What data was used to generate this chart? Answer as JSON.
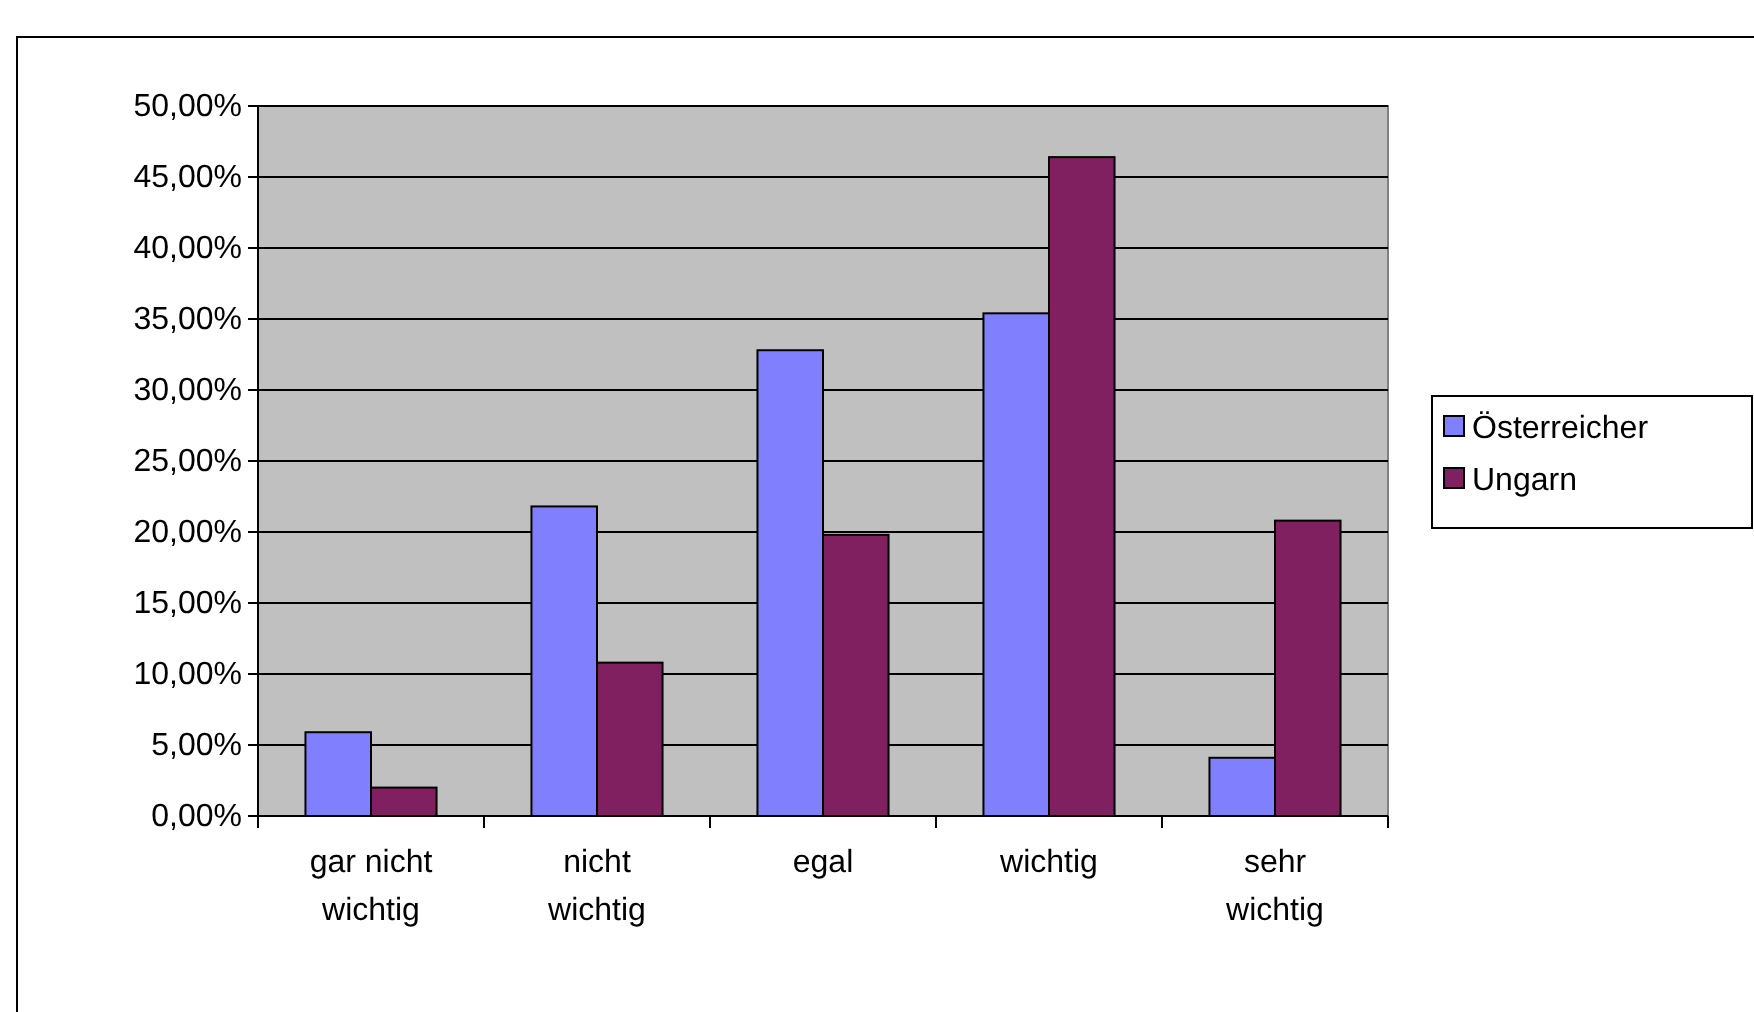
{
  "chart_data": {
    "type": "bar",
    "categories": [
      "gar nicht wichtig",
      "nicht wichtig",
      "egal",
      "wichtig",
      "sehr wichtig"
    ],
    "series": [
      {
        "name": "Österreicher",
        "color": "#8080ff",
        "values": [
          5.9,
          21.8,
          32.8,
          35.4,
          4.1
        ]
      },
      {
        "name": "Ungarn",
        "color": "#802060",
        "values": [
          2.0,
          10.8,
          19.8,
          46.4,
          20.8
        ]
      }
    ],
    "ylim": [
      0,
      50
    ],
    "yticks": [
      {
        "value": 0,
        "label": "0,00%"
      },
      {
        "value": 5,
        "label": "5,00%"
      },
      {
        "value": 10,
        "label": "10,00%"
      },
      {
        "value": 15,
        "label": "15,00%"
      },
      {
        "value": 20,
        "label": "20,00%"
      },
      {
        "value": 25,
        "label": "25,00%"
      },
      {
        "value": 30,
        "label": "30,00%"
      },
      {
        "value": 35,
        "label": "35,00%"
      },
      {
        "value": 40,
        "label": "40,00%"
      },
      {
        "value": 45,
        "label": "45,00%"
      },
      {
        "value": 50,
        "label": "50,00%"
      }
    ],
    "grid": "y",
    "legend": "right"
  }
}
